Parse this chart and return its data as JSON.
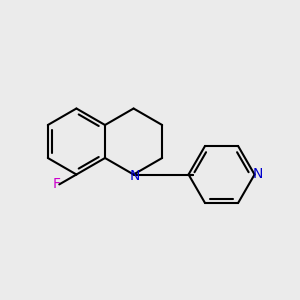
{
  "bg_color": "#ebebeb",
  "bond_color": "#000000",
  "bond_width": 1.5,
  "figsize": [
    3.0,
    3.0
  ],
  "dpi": 100,
  "xlim": [
    0,
    300
  ],
  "ylim": [
    0,
    300
  ]
}
